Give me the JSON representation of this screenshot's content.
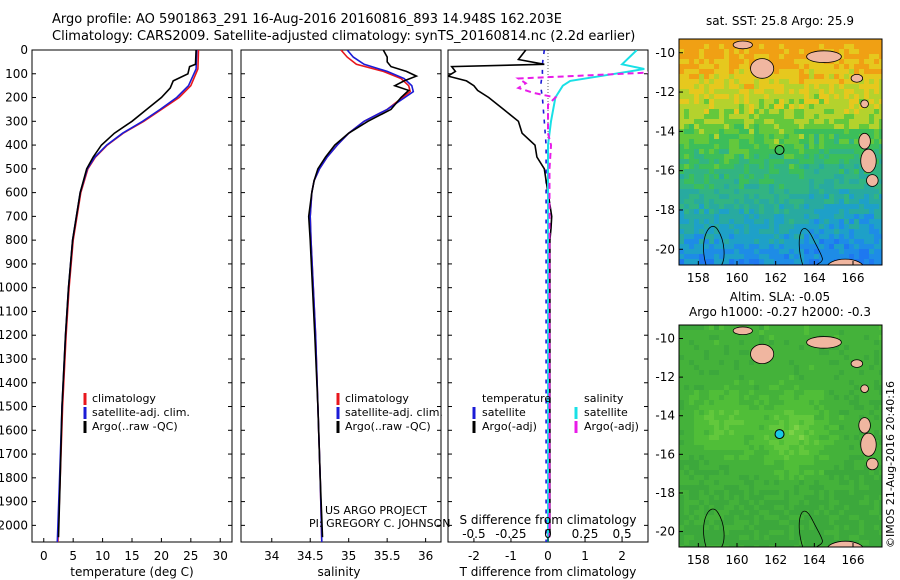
{
  "header": {
    "line1": "Argo profile: AO 5901863_291 16-Aug-2016 20160816_893 14.948S 162.203E",
    "line2": "Climatology: CARS2009. Satellite-adjusted climatology: synTS_20160814.nc (2.2d earlier)"
  },
  "depth_ticks": [
    "0",
    "100",
    "200",
    "300",
    "400",
    "500",
    "600",
    "700",
    "800",
    "900",
    "1000",
    "1100",
    "1200",
    "1300",
    "1400",
    "1500",
    "1600",
    "1700",
    "1800",
    "1900",
    "2000"
  ],
  "colors": {
    "climatology": "#e8161c",
    "satellite": "#1b1bd6",
    "argo": "#000000",
    "satellite_salinity": "#19e0e6",
    "argo_salinity": "#e81ce8"
  },
  "chart_data": [
    {
      "type": "line",
      "panel": "temperature",
      "xlabel": "temperature (deg C)",
      "xticks": [
        "0",
        "5",
        "10",
        "15",
        "20",
        "25",
        "30"
      ],
      "xlim": [
        -2,
        32
      ],
      "ylim": [
        2070,
        0
      ],
      "legend": [
        "climatology",
        "satellite-adj. clim.",
        "Argo(..raw -QC)"
      ],
      "series": [
        {
          "name": "climatology",
          "depth": [
            0,
            80,
            150,
            200,
            250,
            300,
            350,
            400,
            450,
            500,
            600,
            800,
            1000,
            1200,
            1500,
            1800,
            2070
          ],
          "values": [
            26.3,
            26.2,
            25.0,
            23.0,
            20.0,
            17.0,
            13.5,
            10.8,
            8.8,
            7.5,
            6.3,
            5.0,
            4.3,
            3.8,
            3.2,
            2.8,
            2.4
          ]
        },
        {
          "name": "satellite-adj. clim.",
          "depth": [
            0,
            80,
            150,
            200,
            250,
            300,
            350,
            400,
            450,
            500,
            600,
            800,
            1000,
            1200,
            1500,
            1800,
            2070
          ],
          "values": [
            26.0,
            25.9,
            24.6,
            22.6,
            19.8,
            16.8,
            13.4,
            10.7,
            8.7,
            7.4,
            6.2,
            4.9,
            4.2,
            3.7,
            3.1,
            2.7,
            2.3
          ]
        },
        {
          "name": "Argo(..raw -QC)",
          "depth": [
            0,
            60,
            70,
            100,
            130,
            160,
            200,
            250,
            300,
            350,
            400,
            450,
            500,
            600,
            800,
            1000,
            1200,
            1500,
            1800,
            2050
          ],
          "values": [
            25.9,
            25.8,
            24.8,
            24.5,
            22.0,
            21.5,
            20.0,
            17.5,
            15.0,
            12.0,
            9.8,
            8.4,
            7.3,
            6.2,
            4.9,
            4.2,
            3.7,
            3.1,
            2.8,
            2.5
          ]
        }
      ]
    },
    {
      "type": "line",
      "panel": "salinity",
      "xlabel": "salinity",
      "xticks": [
        "34",
        "34.5",
        "35",
        "35.5",
        "36"
      ],
      "xlim": [
        33.6,
        36.2
      ],
      "ylim": [
        2070,
        0
      ],
      "legend": [
        "climatology",
        "satellite-adj. clim.",
        "Argo(..raw -QC)"
      ],
      "series": [
        {
          "name": "climatology",
          "depth": [
            0,
            30,
            60,
            90,
            120,
            150,
            175,
            200,
            250,
            300,
            350,
            400,
            450,
            500,
            550,
            600,
            700,
            800,
            1000,
            1200,
            1500,
            1800,
            2070
          ],
          "values": [
            34.9,
            34.98,
            35.1,
            35.45,
            35.68,
            35.78,
            35.8,
            35.7,
            35.5,
            35.2,
            35.0,
            34.85,
            34.72,
            34.62,
            34.55,
            34.52,
            34.5,
            34.51,
            34.54,
            34.57,
            34.6,
            34.63,
            34.65
          ]
        },
        {
          "name": "satellite-adj. clim.",
          "depth": [
            0,
            30,
            60,
            90,
            120,
            150,
            175,
            200,
            250,
            300,
            350,
            400,
            450,
            500,
            550,
            600,
            700,
            800,
            1000,
            1200,
            1500,
            1800,
            2070
          ],
          "values": [
            34.98,
            35.06,
            35.2,
            35.5,
            35.72,
            35.82,
            35.84,
            35.73,
            35.5,
            35.2,
            35.0,
            34.85,
            34.72,
            34.62,
            34.55,
            34.52,
            34.5,
            34.51,
            34.54,
            34.57,
            34.6,
            34.63,
            34.65
          ]
        },
        {
          "name": "Argo(..raw -QC)",
          "depth": [
            0,
            30,
            50,
            70,
            90,
            110,
            130,
            150,
            170,
            200,
            250,
            300,
            350,
            400,
            450,
            500,
            550,
            600,
            700,
            800,
            1000,
            1200,
            1500,
            1800,
            2050
          ],
          "values": [
            35.45,
            35.5,
            35.5,
            35.55,
            35.75,
            35.88,
            35.72,
            35.6,
            35.78,
            35.68,
            35.55,
            35.25,
            35.0,
            34.82,
            34.7,
            34.6,
            34.55,
            34.52,
            34.48,
            34.5,
            34.53,
            34.56,
            34.6,
            34.63,
            34.66
          ]
        }
      ]
    },
    {
      "type": "line",
      "panel": "difference",
      "xlabel": "T difference from climatology",
      "xlabel_top": "S difference from climatology",
      "xticks_T": [
        "-2",
        "-1",
        "0",
        "1",
        "2"
      ],
      "xticks_S": [
        "-0.5",
        "-0.25",
        "0",
        "0.25",
        "0.5"
      ],
      "xlim": [
        -2.7,
        2.7
      ],
      "ylim": [
        2070,
        0
      ],
      "legend_temperature_title": "temperature",
      "legend_salinity_title": "salinity",
      "legend": [
        "satellite",
        "Argo(-adj)",
        "satellite",
        "Argo(-adj)"
      ],
      "series": [
        {
          "name": "satellite",
          "kind": "T",
          "depth": [
            0,
            60,
            100,
            150,
            200,
            300,
            400,
            600,
            800,
            1000,
            1500,
            2070
          ],
          "values": [
            -0.1,
            -0.15,
            -0.15,
            -0.2,
            -0.15,
            -0.1,
            -0.05,
            -0.05,
            -0.05,
            -0.05,
            -0.05,
            -0.05
          ]
        },
        {
          "name": "Argo(-adj)",
          "kind": "T",
          "depth": [
            0,
            40,
            60,
            70,
            90,
            110,
            130,
            150,
            170,
            200,
            250,
            300,
            350,
            400,
            450,
            500,
            550,
            600,
            650,
            700,
            750,
            800,
            900,
            1000,
            1200,
            1500,
            1800,
            2040
          ],
          "values": [
            -0.6,
            -0.8,
            -0.1,
            -2.6,
            -2.5,
            -2.7,
            -2.2,
            -2.0,
            -1.9,
            -1.6,
            -1.2,
            -0.8,
            -0.7,
            -0.35,
            -0.3,
            -0.1,
            -0.05,
            0.0,
            0.05,
            0.1,
            0.08,
            0.05,
            0.05,
            0.05,
            0.05,
            0.05,
            0.05,
            0.05
          ]
        },
        {
          "name": "satellite",
          "kind": "S",
          "depth": [
            0,
            60,
            80,
            100,
            130,
            150,
            200,
            300,
            400,
            600,
            800,
            1000,
            1500,
            2070
          ],
          "values": [
            0.6,
            0.5,
            0.65,
            0.45,
            0.15,
            0.1,
            0.05,
            0.02,
            0.0,
            0.0,
            0.0,
            0.0,
            0.0,
            0.0
          ]
        },
        {
          "name": "Argo(-adj)",
          "kind": "S",
          "depth": [
            0,
            20,
            40,
            60,
            80,
            100,
            120,
            140,
            160,
            180,
            200,
            230,
            260,
            300,
            350,
            400,
            500,
            600,
            800,
            1000,
            1500,
            2050
          ],
          "values": [
            0.7,
            1.1,
            1.7,
            1.85,
            1.2,
            0.5,
            -0.2,
            -0.15,
            -0.2,
            -0.1,
            0.05,
            0.0,
            0.0,
            0.0,
            0.0,
            0.02,
            0.01,
            0.01,
            0.01,
            0.01,
            0.01,
            0.01
          ]
        }
      ]
    },
    {
      "type": "heatmap",
      "panel": "map-sst",
      "title": "sat. SST: 25.8 Argo: 25.9",
      "xticks": [
        "158",
        "160",
        "162",
        "164",
        "166"
      ],
      "yticks": [
        "-10",
        "-12",
        "-14",
        "-16",
        "-18",
        "-20"
      ],
      "xlim": [
        157,
        167.5
      ],
      "ylim": [
        -20.8,
        -9.3
      ],
      "argo_position": [
        162.2,
        -14.95
      ]
    },
    {
      "type": "heatmap",
      "panel": "map-sla",
      "title_line1": "Altim. SLA: -0.05",
      "title_line2": "Argo h1000: -0.27 h2000: -0.3",
      "xticks": [
        "158",
        "160",
        "162",
        "164",
        "166"
      ],
      "yticks": [
        "-10",
        "-12",
        "-14",
        "-16",
        "-18",
        "-20"
      ],
      "xlim": [
        157,
        167.5
      ],
      "ylim": [
        -20.8,
        -9.3
      ],
      "argo_position": [
        162.2,
        -14.95
      ]
    }
  ],
  "annotations": {
    "project": "US ARGO PROJECT",
    "pi": "PI: GREGORY C. JOHNSON",
    "imos": "©IMOS 21-Aug-2016 20:40:16"
  }
}
